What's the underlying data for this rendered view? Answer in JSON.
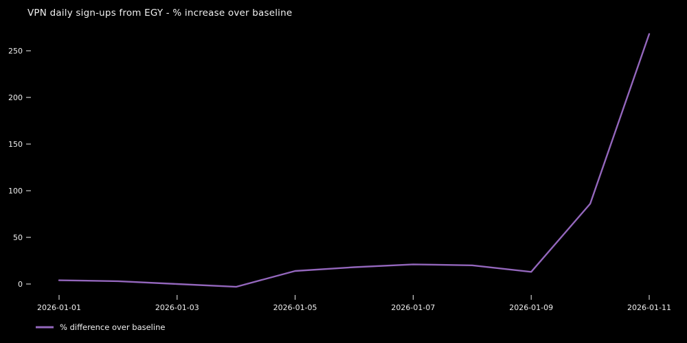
{
  "title": "VPN daily sign-ups from EGY - % increase over baseline",
  "colors": {
    "background": "#000000",
    "text": "#f0f0f0",
    "line": "#9467bd"
  },
  "legend": {
    "label": "% difference over baseline",
    "position": "lower left"
  },
  "chart_data": {
    "type": "line",
    "title": "VPN daily sign-ups from EGY - % increase over baseline",
    "x": [
      "2026-01-01",
      "2026-01-02",
      "2026-01-03",
      "2026-01-04",
      "2026-01-05",
      "2026-01-06",
      "2026-01-07",
      "2026-01-08",
      "2026-01-09",
      "2026-01-10",
      "2026-01-11"
    ],
    "values": [
      4,
      3,
      0,
      -3,
      14,
      18,
      21,
      20,
      13,
      86,
      268
    ],
    "series_name": "% difference over baseline",
    "x_tick_labels": [
      "2026-01-01",
      "2026-01-03",
      "2026-01-05",
      "2026-01-07",
      "2026-01-09",
      "2026-01-11"
    ],
    "y_ticks": [
      0,
      50,
      100,
      150,
      200,
      250
    ],
    "ylim": [
      -25,
      285
    ],
    "grid": false,
    "legend_position": "lower left",
    "xlabel": "",
    "ylabel": ""
  }
}
